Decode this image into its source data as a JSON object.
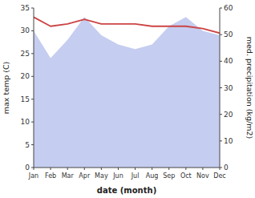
{
  "chart_data": {
    "type": "line",
    "categories": [
      "Jan",
      "Feb",
      "Mar",
      "Apr",
      "May",
      "Jun",
      "Jul",
      "Aug",
      "Sep",
      "Oct",
      "Nov",
      "Dec"
    ],
    "series": [
      {
        "type": "area",
        "color": "#c5cdf0",
        "values": [
          30,
          24,
          28,
          33,
          29,
          27,
          26,
          27,
          31,
          33,
          30,
          29
        ]
      },
      {
        "type": "line",
        "color": "#cc4444",
        "values": [
          33.0,
          31.0,
          31.5,
          32.5,
          31.5,
          31.5,
          31.5,
          31.0,
          31.0,
          31.0,
          30.5,
          29.5
        ]
      }
    ],
    "ylim": [
      0,
      35
    ],
    "yticks": [
      0,
      5,
      10,
      15,
      20,
      25,
      30,
      35
    ],
    "y2lim": [
      0,
      60
    ],
    "y2ticks": [
      0,
      10,
      20,
      30,
      40,
      50,
      60
    ],
    "y_label": "max temp (C)",
    "y2_label": "med. precipitation (kg/m2)",
    "x_label": "date (month)",
    "grid": false
  }
}
